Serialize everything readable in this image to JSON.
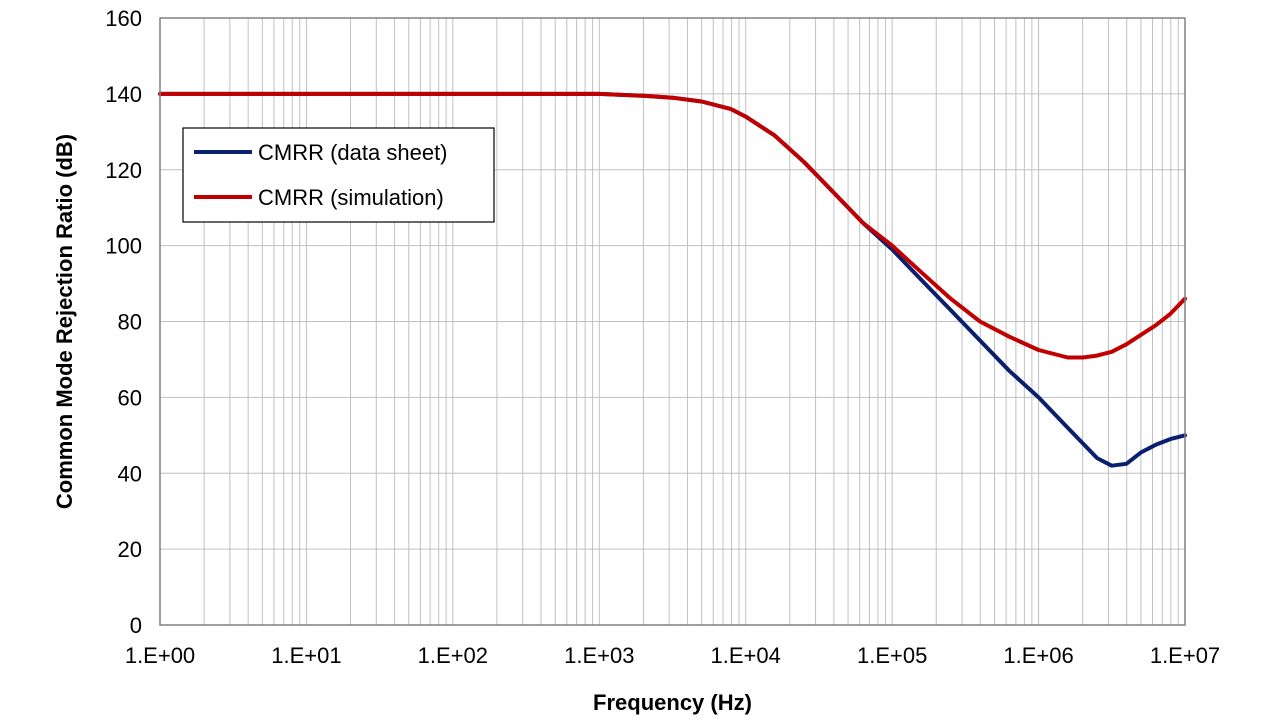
{
  "chart_data": {
    "type": "line",
    "title": "",
    "xlabel": "Frequency (Hz)",
    "ylabel": "Common Mode Rejection Ratio (dB)",
    "xscale": "log",
    "xlim": [
      1,
      10000000
    ],
    "ylim": [
      0,
      160
    ],
    "x_tick_labels": [
      "1.E+00",
      "1.E+01",
      "1.E+02",
      "1.E+03",
      "1.E+04",
      "1.E+05",
      "1.E+06",
      "1.E+07"
    ],
    "y_ticks": [
      0,
      20,
      40,
      60,
      80,
      100,
      120,
      140,
      160
    ],
    "grid": true,
    "legend_position": "upper-left",
    "series": [
      {
        "name": "CMRR (data sheet)",
        "color": "#0a1f6e",
        "x": [
          1,
          10,
          100,
          1000,
          2000,
          3160,
          5000,
          7940,
          10000,
          15800,
          25100,
          39800,
          63100,
          100000,
          158000,
          251000,
          398000,
          631000,
          1000000,
          1580000,
          2510000,
          3160000,
          3980000,
          5010000,
          6310000,
          7940000,
          10000000
        ],
        "y": [
          140,
          140,
          140,
          140,
          139.5,
          139,
          138,
          136,
          134,
          129,
          122,
          114,
          106,
          99,
          91,
          83,
          75,
          67,
          60,
          52,
          44,
          42,
          42.5,
          45.5,
          47.5,
          49,
          50
        ]
      },
      {
        "name": "CMRR (simulation)",
        "color": "#c00000",
        "x": [
          1,
          10,
          100,
          1000,
          2000,
          3160,
          5000,
          7940,
          10000,
          15800,
          25100,
          39800,
          63100,
          100000,
          158000,
          251000,
          398000,
          631000,
          1000000,
          1580000,
          2000000,
          2510000,
          3160000,
          3980000,
          5010000,
          6310000,
          7940000,
          10000000
        ],
        "y": [
          140,
          140,
          140,
          140,
          139.5,
          139,
          138,
          136,
          134,
          129,
          122,
          114,
          106,
          100,
          93,
          86,
          80,
          76,
          72.5,
          70.5,
          70.5,
          71,
          72,
          74,
          76.5,
          79,
          82,
          86
        ]
      }
    ]
  }
}
